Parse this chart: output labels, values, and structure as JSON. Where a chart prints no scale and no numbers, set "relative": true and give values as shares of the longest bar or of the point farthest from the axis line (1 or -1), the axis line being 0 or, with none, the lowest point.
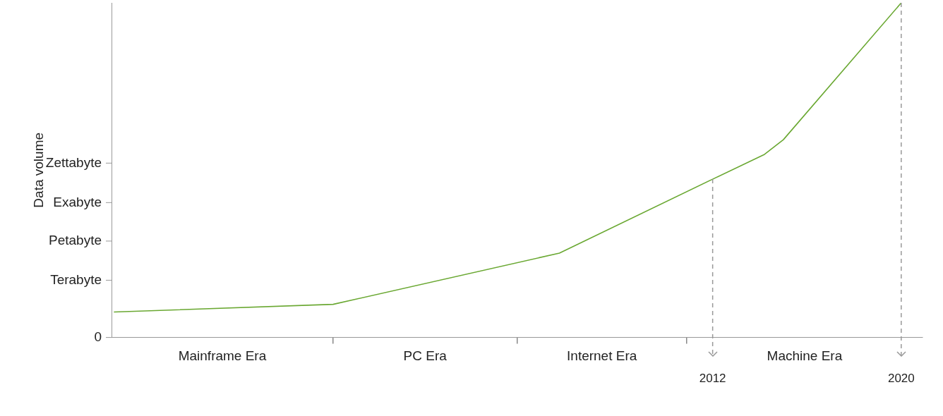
{
  "chart_data": {
    "type": "line",
    "ylabel": "Data volume",
    "relative": true,
    "x": [
      1986.6,
      1995.9,
      2005.5,
      2012,
      2014.2,
      2015,
      2020
    ],
    "series": [
      {
        "color": "#6aa832",
        "values": [
          0.076,
          0.099,
          0.252,
          0.473,
          0.547,
          0.591,
          1
        ]
      }
    ],
    "xlim": [
      1986.5,
      2020.9
    ],
    "xticks": [
      {
        "value": 1995.9,
        "label": null
      },
      {
        "value": 2003.7,
        "label": null
      },
      {
        "value": 2010.9,
        "label": null
      },
      2012,
      2020
    ],
    "annotations": [
      "Mainframe Era",
      "PC Era",
      "Internet Era",
      "Machine Era"
    ],
    "ref_lines": [
      {
        "axis": "x",
        "value": 2012,
        "color": "#999999",
        "line_style": "dashed"
      },
      {
        "axis": "x",
        "value": 2020,
        "color": "#999999",
        "line_style": "dashed"
      },
      {
        "axis": "y",
        "value": 0,
        "label": "0",
        "color": "#999999",
        "line_style": "solid"
      },
      {
        "axis": "y",
        "value": 0.171,
        "label": "Terabyte",
        "color": "#999999",
        "line_style": "solid"
      },
      {
        "axis": "y",
        "value": 0.288,
        "label": "Petabyte",
        "color": "#999999",
        "line_style": "solid"
      },
      {
        "axis": "y",
        "value": 0.403,
        "label": "Exabyte",
        "color": "#999999",
        "line_style": "solid"
      },
      {
        "axis": "y",
        "value": 0.521,
        "label": "Zettabyte",
        "color": "#999999",
        "line_style": "solid"
      }
    ],
    "grid": false,
    "legend": false,
    "marker": "none",
    "line_style": "solid"
  }
}
